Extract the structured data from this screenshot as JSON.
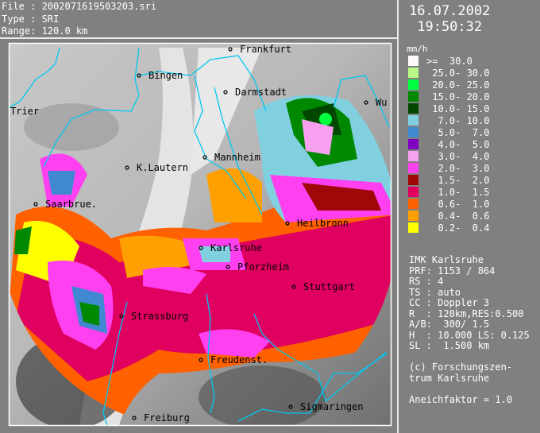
{
  "header": {
    "file": "File : 2002071619503203.sri",
    "type": "Type : SRI",
    "range": "Range: 120.0 km"
  },
  "datetime": {
    "date": "16.07.2002",
    "time": " 19:50:32"
  },
  "legend": {
    "unit": "mm/h",
    "items": [
      {
        "label": ">=  30.0",
        "color": "#fff8f8"
      },
      {
        "label": " 25.0- 30.0",
        "color": "#b8f888"
      },
      {
        "label": " 20.0- 25.0",
        "color": "#00ff40"
      },
      {
        "label": " 15.0- 20.0",
        "color": "#008800"
      },
      {
        "label": " 10.0- 15.0",
        "color": "#004800"
      },
      {
        "label": "  7.0- 10.0",
        "color": "#80d0e0"
      },
      {
        "label": "  5.0-  7.0",
        "color": "#4088d0"
      },
      {
        "label": "  4.0-  5.0",
        "color": "#8000c0"
      },
      {
        "label": "  3.0-  4.0",
        "color": "#f8a0f0"
      },
      {
        "label": "  2.0-  3.0",
        "color": "#ff40f0"
      },
      {
        "label": "  1.5-  2.0",
        "color": "#a00808"
      },
      {
        "label": "  1.0-  1.5",
        "color": "#e00060"
      },
      {
        "label": "  0.6-  1.0",
        "color": "#ff6000"
      },
      {
        "label": "  0.4-  0.6",
        "color": "#ffa000"
      },
      {
        "label": "  0.2-  0.4",
        "color": "#ffff00"
      }
    ]
  },
  "info": {
    "lines": [
      "IMK Karlsruhe",
      "PRF: 1153 / 864",
      "RS : 4",
      "TS : auto",
      "CC : Doppler 3",
      "R  : 120km,RES:0.500",
      "A/B:  300/ 1.5",
      "H  : 10.000 LS: 0.125",
      "SL :  1.500 km",
      "",
      "(c) Forschungszen-",
      "trum Karlsruhe",
      "",
      "Aneichfaktor = 1.0"
    ]
  },
  "map": {
    "border_color": "#00c8f0",
    "cities": [
      {
        "name": "Frankfurt"
      },
      {
        "name": "Bingen"
      },
      {
        "name": "Darmstadt"
      },
      {
        "name": "Wu"
      },
      {
        "name": "Trier"
      },
      {
        "name": "Mannheim"
      },
      {
        "name": "K.Lautern"
      },
      {
        "name": "Saarbrue."
      },
      {
        "name": "Heilbronn"
      },
      {
        "name": "Karlsruhe"
      },
      {
        "name": "Pforzheim"
      },
      {
        "name": "Stuttgart"
      },
      {
        "name": "Strassburg"
      },
      {
        "name": "Freudenst."
      },
      {
        "name": "Sigmaringen"
      },
      {
        "name": "Freiburg"
      }
    ]
  }
}
